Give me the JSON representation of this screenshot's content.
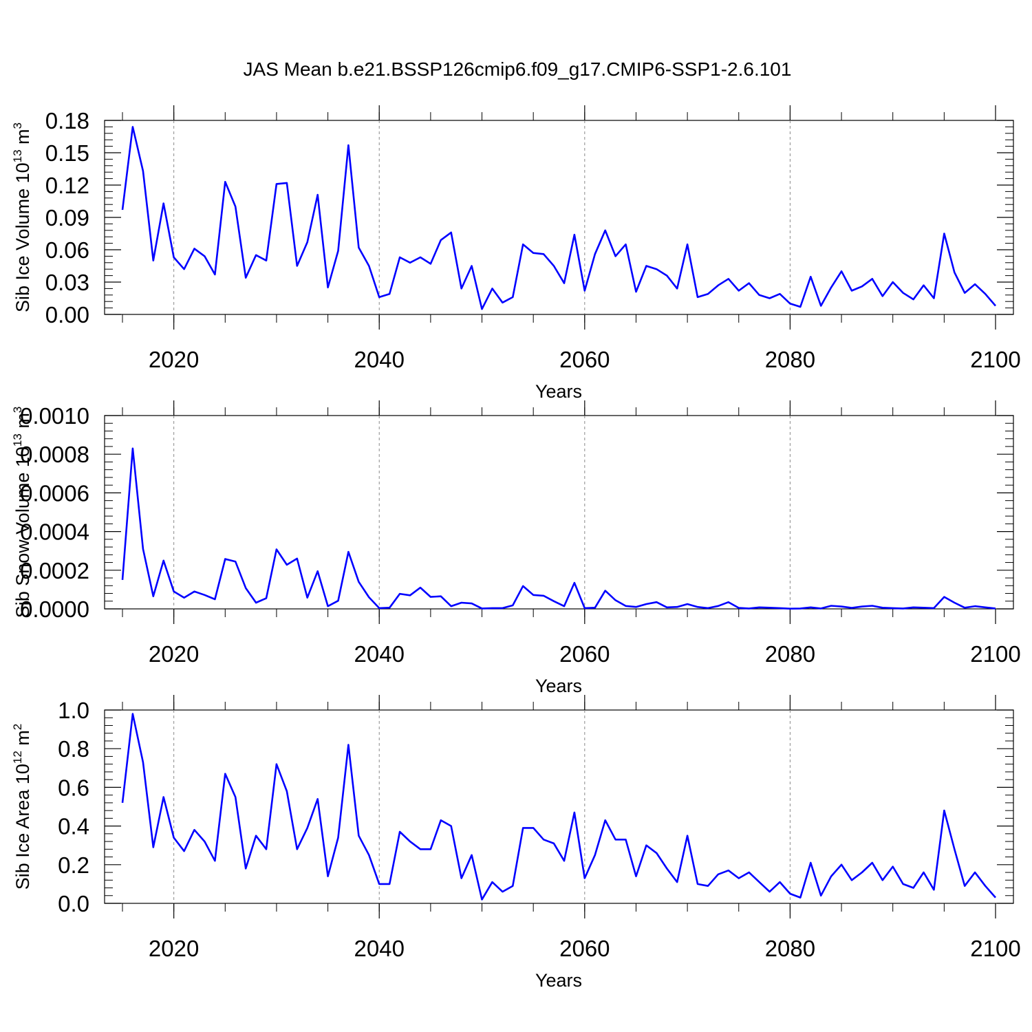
{
  "title": "JAS Mean b.e21.BSSP126cmip6.f09_g17.CMIP6-SSP1-2.6.101",
  "colors": {
    "line": "#0000ff",
    "axis": "#000000",
    "grid": "#888888"
  },
  "chart_data": [
    {
      "type": "line",
      "xlabel": "Years",
      "ylabel": {
        "main": "Sib Ice Volume 10",
        "sup": "13",
        "mid": " m",
        "sup2": "3"
      },
      "xlim": [
        2015,
        2100
      ],
      "ylim": [
        0,
        0.18
      ],
      "xticks": [
        2020,
        2040,
        2060,
        2080,
        2100
      ],
      "yticks": [
        0.0,
        0.03,
        0.06,
        0.09,
        0.12,
        0.15,
        0.18
      ],
      "ytick_labels": [
        "0.00",
        "0.03",
        "0.06",
        "0.09",
        "0.12",
        "0.15",
        "0.18"
      ],
      "grid": "vertical-dashed-at-major-x",
      "x": [
        2015,
        2016,
        2017,
        2018,
        2019,
        2020,
        2021,
        2022,
        2023,
        2024,
        2025,
        2026,
        2027,
        2028,
        2029,
        2030,
        2031,
        2032,
        2033,
        2034,
        2035,
        2036,
        2037,
        2038,
        2039,
        2040,
        2041,
        2042,
        2043,
        2044,
        2045,
        2046,
        2047,
        2048,
        2049,
        2050,
        2051,
        2052,
        2053,
        2054,
        2055,
        2056,
        2057,
        2058,
        2059,
        2060,
        2061,
        2062,
        2063,
        2064,
        2065,
        2066,
        2067,
        2068,
        2069,
        2070,
        2071,
        2072,
        2073,
        2074,
        2075,
        2076,
        2077,
        2078,
        2079,
        2080,
        2081,
        2082,
        2083,
        2084,
        2085,
        2086,
        2087,
        2088,
        2089,
        2090,
        2091,
        2092,
        2093,
        2094,
        2095,
        2096,
        2097,
        2098,
        2099,
        2100
      ],
      "values": [
        0.097,
        0.174,
        0.133,
        0.05,
        0.103,
        0.053,
        0.042,
        0.061,
        0.054,
        0.037,
        0.123,
        0.1,
        0.034,
        0.055,
        0.05,
        0.121,
        0.122,
        0.045,
        0.067,
        0.111,
        0.025,
        0.059,
        0.157,
        0.062,
        0.045,
        0.016,
        0.019,
        0.053,
        0.048,
        0.053,
        0.047,
        0.069,
        0.076,
        0.024,
        0.045,
        0.005,
        0.024,
        0.011,
        0.016,
        0.065,
        0.057,
        0.056,
        0.045,
        0.029,
        0.074,
        0.022,
        0.056,
        0.078,
        0.054,
        0.065,
        0.021,
        0.045,
        0.042,
        0.036,
        0.024,
        0.065,
        0.016,
        0.019,
        0.027,
        0.033,
        0.022,
        0.029,
        0.018,
        0.015,
        0.019,
        0.01,
        0.007,
        0.035,
        0.008,
        0.025,
        0.04,
        0.022,
        0.026,
        0.033,
        0.017,
        0.03,
        0.02,
        0.014,
        0.027,
        0.015,
        0.075,
        0.039,
        0.02,
        0.028,
        0.019,
        0.008
      ]
    },
    {
      "type": "line",
      "xlabel": "Years",
      "ylabel": {
        "main": "Sib Snow Volume 10",
        "sup": "13",
        "mid": " m",
        "sup2": "3"
      },
      "xlim": [
        2015,
        2100
      ],
      "ylim": [
        0,
        0.001
      ],
      "xticks": [
        2020,
        2040,
        2060,
        2080,
        2100
      ],
      "yticks": [
        0,
        0.0002,
        0.0004,
        0.0006,
        0.0008,
        0.001
      ],
      "ytick_labels": [
        "0.0000",
        "0.0002",
        "0.0004",
        "0.0006",
        "0.0008",
        "0.0010"
      ],
      "grid": "vertical-dashed-at-major-x",
      "x": [
        2015,
        2016,
        2017,
        2018,
        2019,
        2020,
        2021,
        2022,
        2023,
        2024,
        2025,
        2026,
        2027,
        2028,
        2029,
        2030,
        2031,
        2032,
        2033,
        2034,
        2035,
        2036,
        2037,
        2038,
        2039,
        2040,
        2041,
        2042,
        2043,
        2044,
        2045,
        2046,
        2047,
        2048,
        2049,
        2050,
        2051,
        2052,
        2053,
        2054,
        2055,
        2056,
        2057,
        2058,
        2059,
        2060,
        2061,
        2062,
        2063,
        2064,
        2065,
        2066,
        2067,
        2068,
        2069,
        2070,
        2071,
        2072,
        2073,
        2074,
        2075,
        2076,
        2077,
        2078,
        2079,
        2080,
        2081,
        2082,
        2083,
        2084,
        2085,
        2086,
        2087,
        2088,
        2089,
        2090,
        2091,
        2092,
        2093,
        2094,
        2095,
        2096,
        2097,
        2098,
        2099,
        2100
      ],
      "values": [
        0.00015,
        0.00083,
        0.00031,
        6.5e-05,
        0.00025,
        9e-05,
        5.8e-05,
        9e-05,
        7.2e-05,
        5e-05,
        0.000258,
        0.000245,
        0.000108,
        3.2e-05,
        5.5e-05,
        0.000308,
        0.000228,
        0.00026,
        5.8e-05,
        0.000195,
        1.4e-05,
        4.2e-05,
        0.000295,
        0.00014,
        6e-05,
        4e-06,
        6e-06,
        7.8e-05,
        7e-05,
        0.00011,
        6.2e-05,
        6.5e-05,
        1.4e-05,
        3.2e-05,
        2.8e-05,
        2e-06,
        4e-06,
        4e-06,
        1.8e-05,
        0.000118,
        7.2e-05,
        6.8e-05,
        4e-05,
        1.4e-05,
        0.000135,
        4e-06,
        6e-06,
        9.4e-05,
        4.5e-05,
        1.5e-05,
        1e-05,
        2.5e-05,
        3.5e-05,
        8e-06,
        1e-05,
        2.5e-05,
        1e-05,
        4e-06,
        1.5e-05,
        3.5e-05,
        5e-06,
        2e-06,
        8e-06,
        6e-06,
        4e-06,
        1e-06,
        2e-06,
        8e-06,
        2e-06,
        1.6e-05,
        1.2e-05,
        5e-06,
        1.2e-05,
        1.6e-05,
        6e-06,
        4e-06,
        2e-06,
        8e-06,
        6e-06,
        4e-06,
        6.2e-05,
        3.2e-05,
        6e-06,
        1.4e-05,
        8e-06,
        2e-06
      ]
    },
    {
      "type": "line",
      "xlabel": "Years",
      "ylabel": {
        "main": "Sib Ice Area 10",
        "sup": "12",
        "mid": " m",
        "sup2": "2"
      },
      "xlim": [
        2015,
        2100
      ],
      "ylim": [
        0,
        1.0
      ],
      "xticks": [
        2020,
        2040,
        2060,
        2080,
        2100
      ],
      "yticks": [
        0,
        0.2,
        0.4,
        0.6,
        0.8,
        1.0
      ],
      "ytick_labels": [
        "0.0",
        "0.2",
        "0.4",
        "0.6",
        "0.8",
        "1.0"
      ],
      "grid": "vertical-dashed-at-major-x",
      "x": [
        2015,
        2016,
        2017,
        2018,
        2019,
        2020,
        2021,
        2022,
        2023,
        2024,
        2025,
        2026,
        2027,
        2028,
        2029,
        2030,
        2031,
        2032,
        2033,
        2034,
        2035,
        2036,
        2037,
        2038,
        2039,
        2040,
        2041,
        2042,
        2043,
        2044,
        2045,
        2046,
        2047,
        2048,
        2049,
        2050,
        2051,
        2052,
        2053,
        2054,
        2055,
        2056,
        2057,
        2058,
        2059,
        2060,
        2061,
        2062,
        2063,
        2064,
        2065,
        2066,
        2067,
        2068,
        2069,
        2070,
        2071,
        2072,
        2073,
        2074,
        2075,
        2076,
        2077,
        2078,
        2079,
        2080,
        2081,
        2082,
        2083,
        2084,
        2085,
        2086,
        2087,
        2088,
        2089,
        2090,
        2091,
        2092,
        2093,
        2094,
        2095,
        2096,
        2097,
        2098,
        2099,
        2100
      ],
      "values": [
        0.52,
        0.98,
        0.73,
        0.29,
        0.55,
        0.34,
        0.27,
        0.38,
        0.32,
        0.22,
        0.67,
        0.55,
        0.18,
        0.35,
        0.28,
        0.72,
        0.58,
        0.28,
        0.39,
        0.54,
        0.14,
        0.34,
        0.82,
        0.35,
        0.25,
        0.1,
        0.1,
        0.37,
        0.32,
        0.28,
        0.28,
        0.43,
        0.4,
        0.13,
        0.25,
        0.02,
        0.11,
        0.06,
        0.09,
        0.39,
        0.39,
        0.33,
        0.31,
        0.22,
        0.47,
        0.13,
        0.25,
        0.43,
        0.33,
        0.33,
        0.14,
        0.3,
        0.26,
        0.18,
        0.11,
        0.35,
        0.1,
        0.09,
        0.15,
        0.17,
        0.13,
        0.16,
        0.11,
        0.06,
        0.11,
        0.05,
        0.03,
        0.21,
        0.04,
        0.14,
        0.2,
        0.12,
        0.16,
        0.21,
        0.12,
        0.19,
        0.1,
        0.08,
        0.16,
        0.07,
        0.48,
        0.28,
        0.09,
        0.16,
        0.09,
        0.03
      ]
    }
  ]
}
